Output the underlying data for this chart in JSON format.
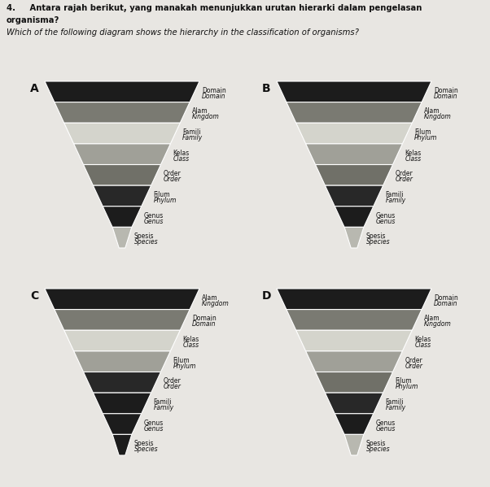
{
  "bg_color": "#e8e6e2",
  "header": {
    "line1": "4.     Antara rajah berikut, yang manakah menunjukkan urutan hierarki dalam pengelasan",
    "line2": "organisma?",
    "line3": "Which of the following diagram shows the hierarchy in the classification of organisms?"
  },
  "diagrams": [
    {
      "label": "A",
      "levels": [
        {
          "malay": "Domain",
          "english": "Domain",
          "color": "#1c1c1c"
        },
        {
          "malay": "Alam",
          "english": "Kingdom",
          "color": "#7a7a72"
        },
        {
          "malay": "Famili",
          "english": "Family",
          "color": "#d4d4cc"
        },
        {
          "malay": "Kelas",
          "english": "Class",
          "color": "#a0a098"
        },
        {
          "malay": "Order",
          "english": "Order",
          "color": "#707068"
        },
        {
          "malay": "Filum",
          "english": "Phylum",
          "color": "#282828"
        },
        {
          "malay": "Genus",
          "english": "Genus",
          "color": "#1c1c1c"
        },
        {
          "malay": "Spesis",
          "english": "Species",
          "color": "#b8b8b0"
        }
      ]
    },
    {
      "label": "B",
      "levels": [
        {
          "malay": "Domain",
          "english": "Domain",
          "color": "#1c1c1c"
        },
        {
          "malay": "Alam",
          "english": "Kingdom",
          "color": "#7a7a72"
        },
        {
          "malay": "Filum",
          "english": "Phylum",
          "color": "#d4d4cc"
        },
        {
          "malay": "Kelas",
          "english": "Class",
          "color": "#a0a098"
        },
        {
          "malay": "Order",
          "english": "Order",
          "color": "#707068"
        },
        {
          "malay": "Famili",
          "english": "Family",
          "color": "#282828"
        },
        {
          "malay": "Genus",
          "english": "Genus",
          "color": "#1c1c1c"
        },
        {
          "malay": "Spesis",
          "english": "Species",
          "color": "#b8b8b0"
        }
      ]
    },
    {
      "label": "C",
      "levels": [
        {
          "malay": "Alam",
          "english": "Kingdom",
          "color": "#1c1c1c"
        },
        {
          "malay": "Domain",
          "english": "Domain",
          "color": "#7a7a72"
        },
        {
          "malay": "Kelas",
          "english": "Class",
          "color": "#d4d4cc"
        },
        {
          "malay": "Filum",
          "english": "Phylum",
          "color": "#a0a098"
        },
        {
          "malay": "Order",
          "english": "Order",
          "color": "#282828"
        },
        {
          "malay": "Famili",
          "english": "Family",
          "color": "#1c1c1c"
        },
        {
          "malay": "Genus",
          "english": "Genus",
          "color": "#1c1c1c"
        },
        {
          "malay": "Spesis",
          "english": "Species",
          "color": "#1c1c1c"
        }
      ]
    },
    {
      "label": "D",
      "levels": [
        {
          "malay": "Domain",
          "english": "Domain",
          "color": "#1c1c1c"
        },
        {
          "malay": "Alam",
          "english": "Kingdom",
          "color": "#7a7a72"
        },
        {
          "malay": "Kelas",
          "english": "Class",
          "color": "#d4d4cc"
        },
        {
          "malay": "Order",
          "english": "Order",
          "color": "#a0a098"
        },
        {
          "malay": "Filum",
          "english": "Phylum",
          "color": "#707068"
        },
        {
          "malay": "Famili",
          "english": "Family",
          "color": "#282828"
        },
        {
          "malay": "Genus",
          "english": "Genus",
          "color": "#1c1c1c"
        },
        {
          "malay": "Spesis",
          "english": "Species",
          "color": "#b8b8b0"
        }
      ]
    }
  ]
}
